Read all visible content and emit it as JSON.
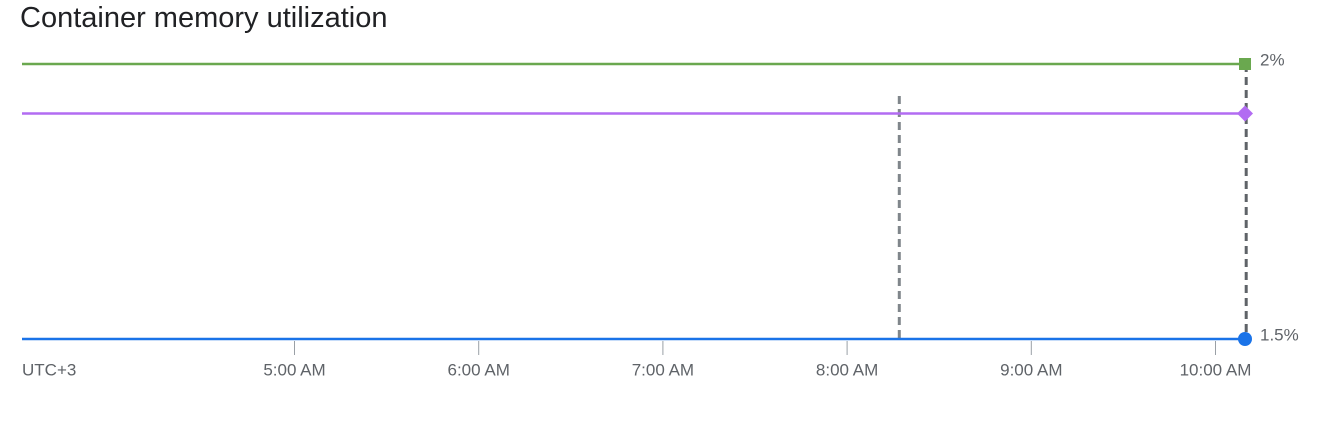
{
  "title": "Container memory utilization",
  "chart_data": {
    "type": "line",
    "title": "Container memory utilization",
    "timezone_label": "UTC+3",
    "x_ticks": [
      "5:00 AM",
      "6:00 AM",
      "7:00 AM",
      "8:00 AM",
      "9:00 AM",
      "10:00 AM"
    ],
    "y_ticks": [
      "2%",
      "1.5%"
    ],
    "ylim": [
      1.5,
      2.0
    ],
    "grid": false,
    "series": [
      {
        "color": "#6aa84f",
        "marker": "square",
        "x": [
          "3:30 AM",
          "10:10 AM"
        ],
        "values": [
          2.0,
          2.0
        ]
      },
      {
        "color": "#b26cf2",
        "marker": "diamond",
        "x": [
          "3:30 AM",
          "10:10 AM"
        ],
        "values": [
          1.91,
          1.91
        ]
      },
      {
        "color": "#1a73e8",
        "marker": "circle",
        "x": [
          "3:30 AM",
          "10:10 AM"
        ],
        "values": [
          1.5,
          1.5
        ]
      }
    ],
    "vertical_markers": [
      "8:17 AM",
      "10:10 AM"
    ]
  }
}
